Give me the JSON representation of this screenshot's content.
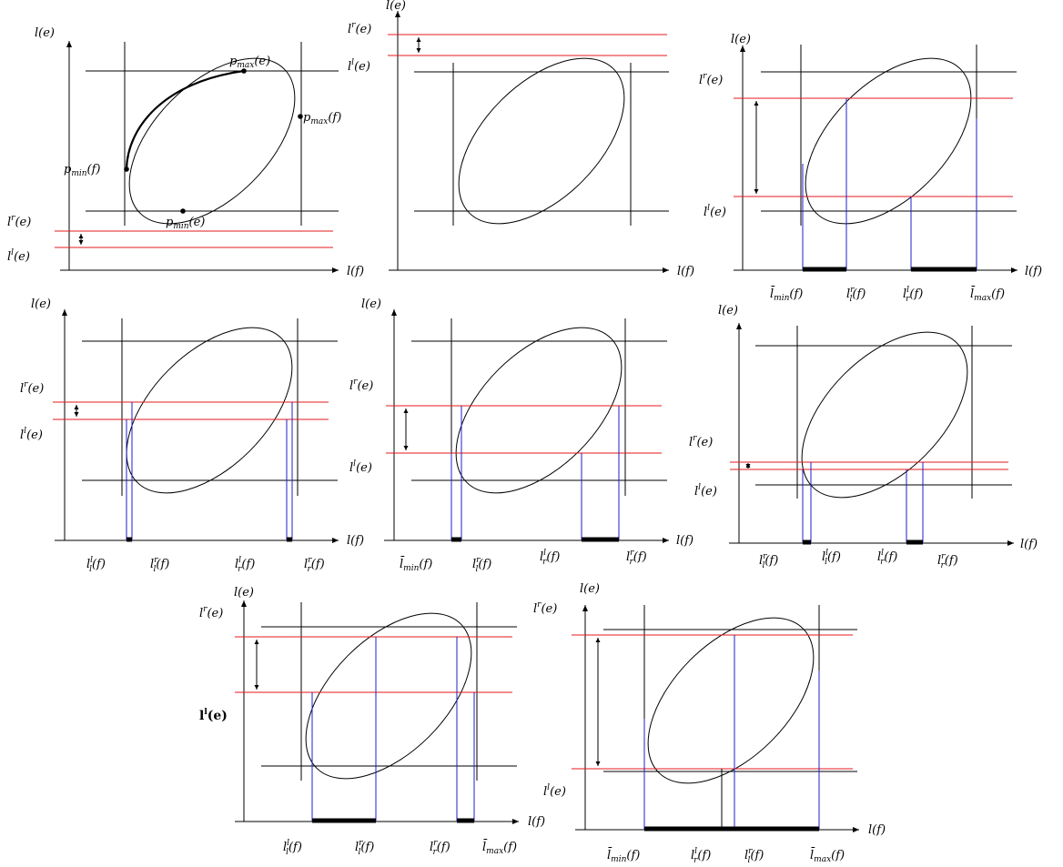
{
  "labels": {
    "le": "l(e)",
    "lf": "l(f)",
    "lre": "l",
    "lre_sup": "r",
    "lre_arg": "(e)",
    "lle": "l",
    "lle_sup": "l",
    "lle_arg": "(e)",
    "pmax_e": "p",
    "pmax_e_sub": "max",
    "pmax_e_arg": "(e)",
    "pmax_f": "p",
    "pmax_f_sub": "max",
    "pmax_f_arg": "(f)",
    "pmin_f": "p",
    "pmin_f_sub": "min",
    "pmin_f_arg": "(f)",
    "pmin_e": "p",
    "pmin_e_sub": "min",
    "pmin_e_arg": "(e)",
    "lbar_min": "l̄",
    "lbar_min_sub": "min",
    "lbar_max": "l̄",
    "lbar_max_sub": "max",
    "arg_f": "(f)",
    "l": "l",
    "sub_l": "l",
    "sub_r": "r",
    "sup_l": "l",
    "sup_r": "r"
  },
  "colors": {
    "axis": "#000000",
    "red": "#e41a1c",
    "blue": "#1f1fcc"
  }
}
